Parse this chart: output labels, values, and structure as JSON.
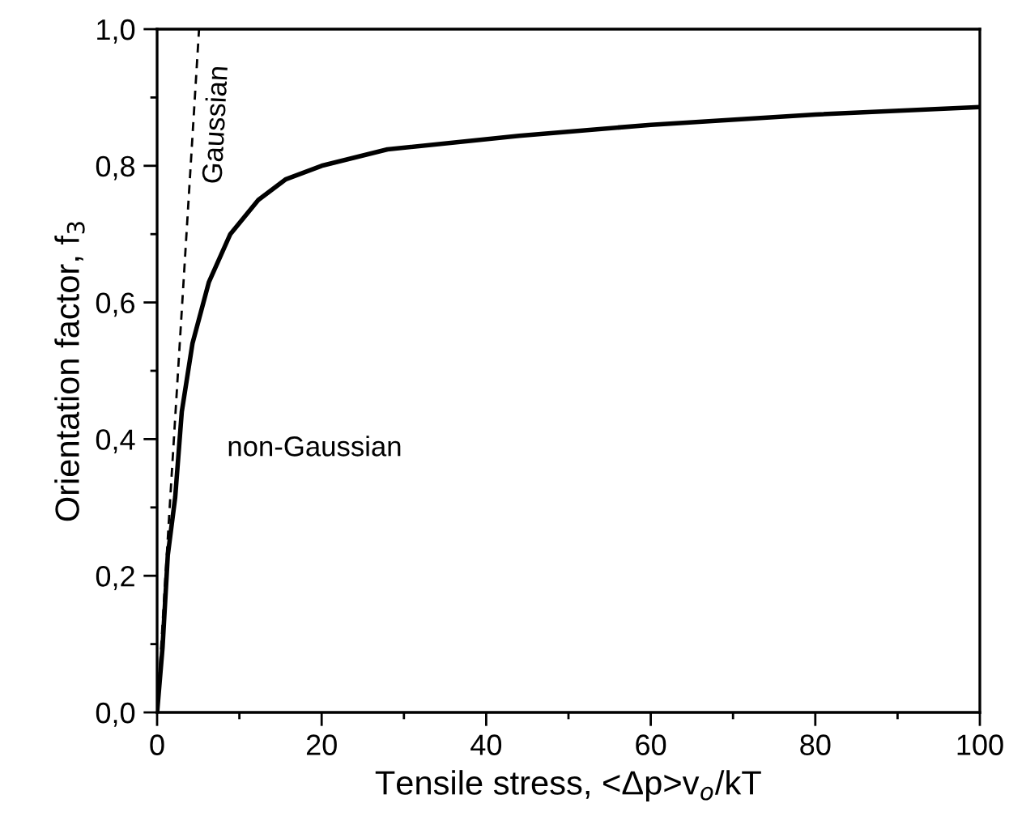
{
  "chart_data": {
    "type": "line",
    "xlabel": "Tensile stress, <Δp>v$_{o}$/kT",
    "ylabel": "Orientation factor, f$_{3}$",
    "series": [
      {
        "name": "Gaussian",
        "color": "#000000",
        "line_style": "dashed",
        "x": [
          0,
          5.1
        ],
        "values": [
          0,
          1.0
        ]
      },
      {
        "name": "non-Gaussian",
        "color": "#000000",
        "line_style": "solid",
        "x": [
          0,
          0.66,
          1.3,
          2.2,
          3.0,
          4.3,
          6.3,
          8.9,
          12.3,
          15.6,
          20,
          28,
          44,
          60,
          80,
          100
        ],
        "values": [
          0,
          0.095,
          0.23,
          0.315,
          0.44,
          0.54,
          0.63,
          0.7,
          0.75,
          0.78,
          0.8,
          0.824,
          0.844,
          0.86,
          0.875,
          0.886
        ]
      }
    ],
    "xlim": [
      0,
      100
    ],
    "ylim": [
      0,
      1.0
    ],
    "xticks": [
      0,
      20,
      40,
      60,
      80,
      100
    ],
    "yticks": [
      {
        "value": 0,
        "label": "0,0"
      },
      {
        "value": 0.2,
        "label": "0,2"
      },
      {
        "value": 0.4,
        "label": "0,4"
      },
      {
        "value": 0.6,
        "label": "0,6"
      },
      {
        "value": 0.8,
        "label": "0,8"
      },
      {
        "value": 1.0,
        "label": "1,0"
      }
    ],
    "grid": false,
    "legend": false,
    "marker": "none"
  }
}
